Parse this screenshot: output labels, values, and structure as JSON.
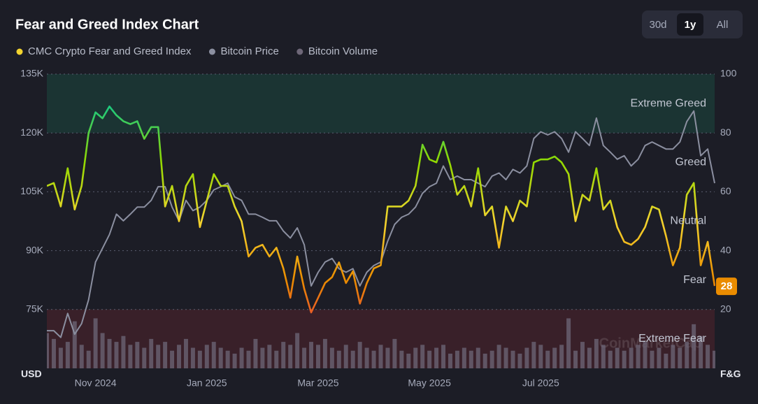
{
  "header": {
    "title": "Fear and Greed Index Chart",
    "ranges": [
      {
        "label": "30d",
        "active": false
      },
      {
        "label": "1y",
        "active": true
      },
      {
        "label": "All",
        "active": false
      }
    ]
  },
  "chart_data": {
    "type": "line",
    "categories": [
      null,
      null,
      null,
      null,
      null,
      null,
      null,
      "Nov 2024",
      null,
      null,
      null,
      null,
      null,
      null,
      null,
      null,
      null,
      null,
      null,
      null,
      null,
      null,
      null,
      "Jan 2025",
      null,
      null,
      null,
      null,
      null,
      null,
      null,
      null,
      null,
      null,
      null,
      null,
      null,
      null,
      null,
      "Mar 2025",
      null,
      null,
      null,
      null,
      null,
      null,
      null,
      null,
      null,
      null,
      null,
      null,
      null,
      null,
      null,
      "May 2025",
      null,
      null,
      null,
      null,
      null,
      null,
      null,
      null,
      null,
      null,
      null,
      null,
      null,
      null,
      null,
      "Jul 2025",
      null,
      null,
      null,
      null,
      null,
      null,
      null,
      null,
      null,
      null,
      null,
      null,
      null,
      null,
      null,
      null,
      null,
      null,
      null,
      null,
      null,
      null,
      null,
      null,
      null
    ],
    "series": [
      {
        "name": "CMC Crypto Fear and Greed Index",
        "color": "#f3d42f",
        "axis": "y2",
        "values": [
          62,
          63,
          55,
          68,
          54,
          62,
          80,
          87,
          85,
          89,
          86,
          84,
          83,
          84,
          78,
          82,
          82,
          55,
          62,
          50,
          62,
          66,
          48,
          57,
          66,
          62,
          62,
          55,
          50,
          38,
          41,
          42,
          38,
          41,
          34,
          24,
          38,
          27,
          19,
          24,
          29,
          31,
          36,
          29,
          33,
          22,
          29,
          34,
          35,
          55,
          55,
          55,
          57,
          62,
          76,
          71,
          70,
          77,
          69,
          59,
          62,
          55,
          68,
          52,
          55,
          41,
          55,
          50,
          57,
          55,
          70,
          71,
          71,
          72,
          70,
          66,
          50,
          59,
          57,
          68,
          54,
          57,
          48,
          43,
          42,
          44,
          48,
          55,
          54,
          45,
          35,
          41,
          59,
          63,
          35,
          43,
          28
        ]
      },
      {
        "name": "Bitcoin Price",
        "color": "#8b8fa0",
        "values": [
          69600,
          69600,
          67900,
          74000,
          68700,
          71400,
          77500,
          87100,
          90600,
          94100,
          99300,
          97600,
          99300,
          101100,
          101100,
          102800,
          106300,
          106300,
          101100,
          97600,
          102800,
          100200,
          101100,
          102800,
          105500,
          106300,
          107200,
          103700,
          102800,
          99300,
          99300,
          98500,
          97600,
          97600,
          95000,
          93200,
          95800,
          91500,
          81000,
          84500,
          87100,
          88000,
          85400,
          84500,
          85400,
          81000,
          84500,
          86200,
          87100,
          92400,
          96700,
          98500,
          99300,
          101100,
          104600,
          106300,
          107200,
          111600,
          108100,
          109000,
          108100,
          108100,
          107200,
          106300,
          109000,
          109800,
          108100,
          110700,
          109800,
          111600,
          118600,
          120300,
          119500,
          120300,
          118600,
          115100,
          120300,
          118600,
          116800,
          123800,
          116800,
          115100,
          113300,
          114200,
          111600,
          113300,
          116800,
          117700,
          116800,
          115900,
          115900,
          117700,
          122900,
          125600,
          114200,
          115900,
          107200
        ]
      },
      {
        "name": "Bitcoin Volume",
        "color": "#6e6778",
        "axis": "y2",
        "type": "bar",
        "values": [
          12,
          10,
          7,
          9,
          16,
          8,
          6,
          17,
          12,
          10,
          9,
          11,
          8,
          9,
          7,
          10,
          8,
          9,
          6,
          8,
          10,
          7,
          6,
          8,
          9,
          7,
          6,
          5,
          7,
          6,
          10,
          7,
          8,
          6,
          9,
          8,
          12,
          7,
          9,
          8,
          10,
          7,
          6,
          8,
          6,
          9,
          7,
          6,
          8,
          7,
          10,
          6,
          5,
          7,
          8,
          6,
          7,
          8,
          5,
          6,
          7,
          6,
          7,
          5,
          6,
          8,
          7,
          6,
          5,
          7,
          9,
          8,
          6,
          7,
          8,
          17,
          6,
          9,
          7,
          10,
          8,
          6,
          7,
          6,
          7,
          8,
          9,
          6,
          7,
          5,
          8,
          7,
          9,
          15,
          11,
          8,
          6
        ]
      }
    ],
    "ylim": [
      60000,
      135000
    ],
    "yticks": [
      {
        "value": 75000,
        "label": "75K"
      },
      {
        "value": 90000,
        "label": "90K"
      },
      {
        "value": 105000,
        "label": "105K"
      },
      {
        "value": 120000,
        "label": "120K"
      },
      {
        "value": 135000,
        "label": "135K"
      }
    ],
    "y2lim": [
      0,
      100
    ],
    "y2ticks": [
      20,
      40,
      60,
      80,
      100
    ],
    "y_label": "USD",
    "y2_label": "F&G",
    "zones": [
      {
        "name": "Extreme Fear",
        "color": "#ea3943",
        "fill": "rgba(234,57,67,0.14)"
      },
      {
        "name": "Fear",
        "color": "#ea8c00"
      },
      {
        "name": "Neutral",
        "color": "#f3d42f"
      },
      {
        "name": "Greed",
        "color": "#93d900"
      },
      {
        "name": "Extreme Greed",
        "color": "#16c784",
        "fill": "rgba(22,199,132,0.14)"
      }
    ],
    "grid": true,
    "watermark": "CoinMarketCap"
  }
}
